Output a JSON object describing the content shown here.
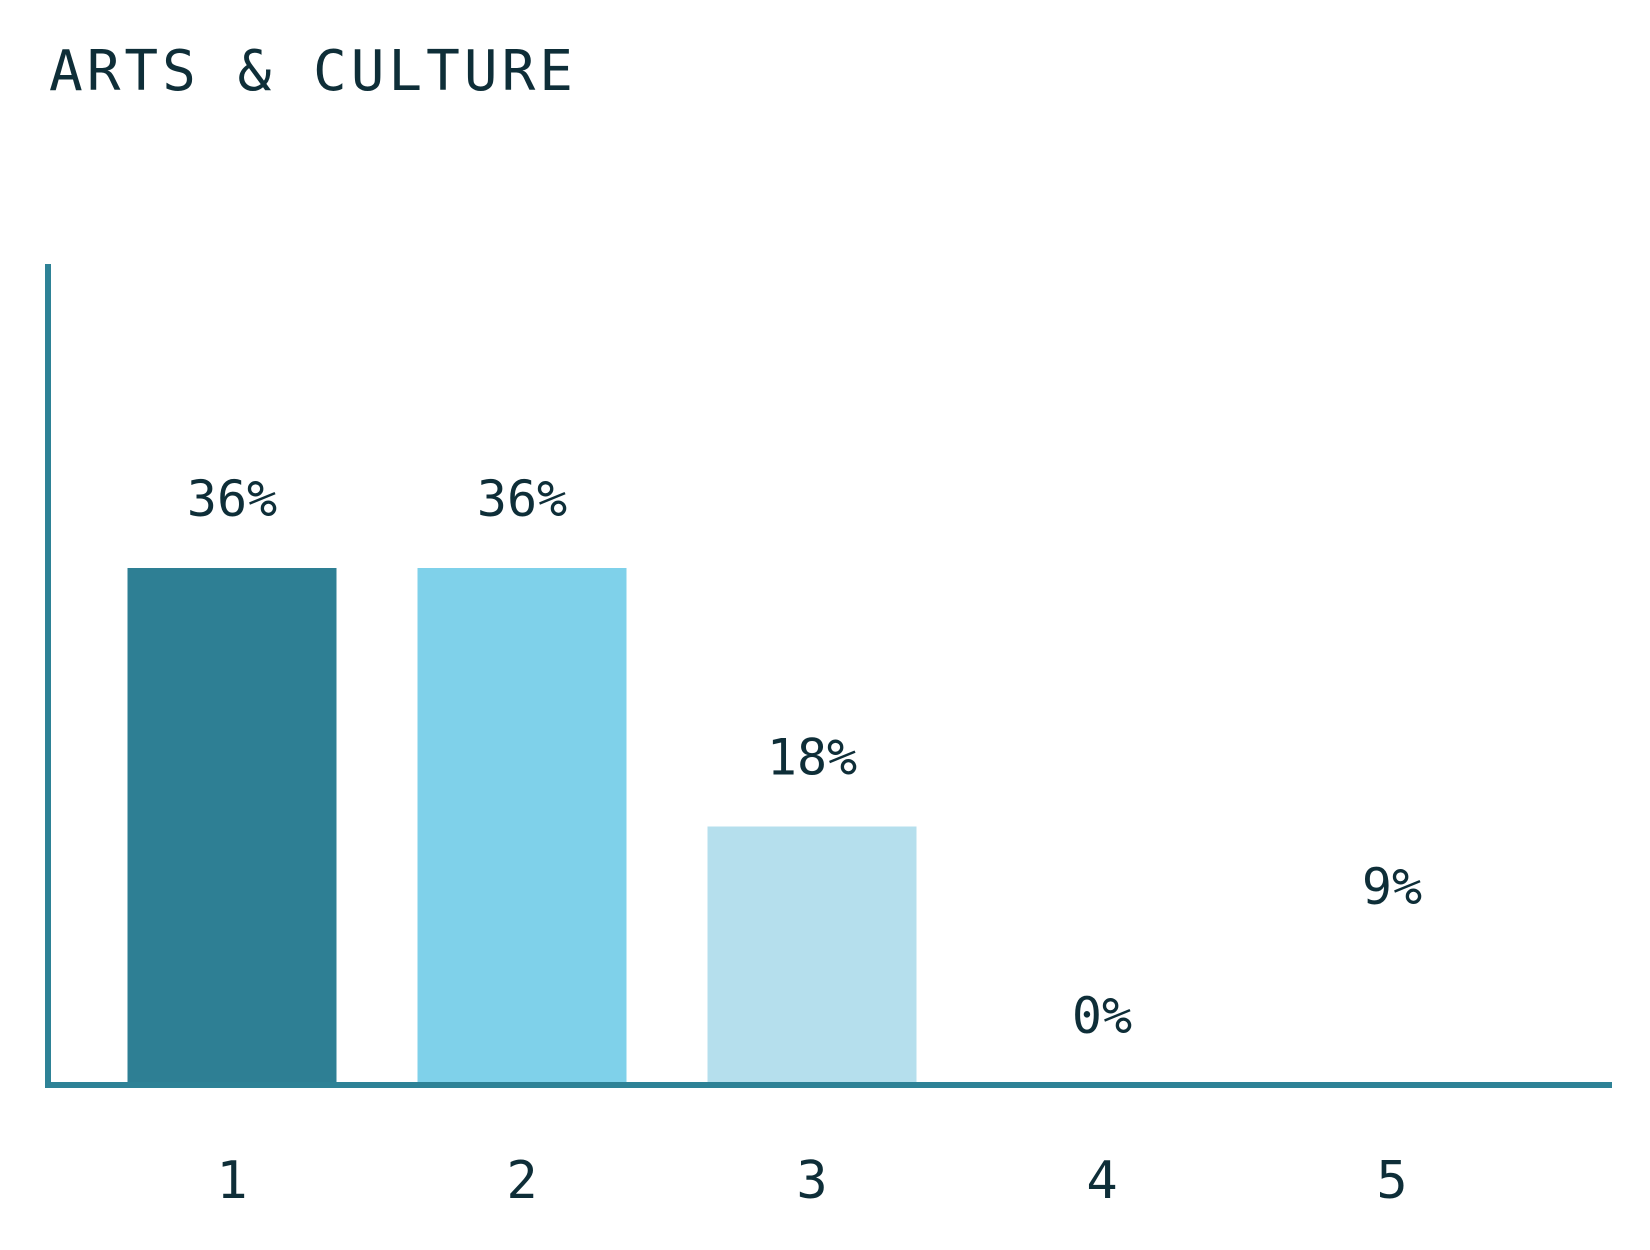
{
  "chart_data": {
    "type": "bar",
    "title": "ARTS & CULTURE",
    "xlabel": "",
    "ylabel": "",
    "categories": [
      "1",
      "2",
      "3",
      "4",
      "5"
    ],
    "values": [
      36,
      36,
      18,
      0,
      9
    ],
    "data_labels": [
      "36%",
      "36%",
      "18%",
      "0%",
      "9%"
    ],
    "bar_colors": [
      "#2e7f94",
      "#7fd1ea",
      "#b5dfed",
      "#b5dfed",
      "#ffffff"
    ],
    "axis_color": "#2e8296",
    "text_color": "#0e2e38",
    "ylim": [
      0,
      72
    ],
    "grid": false,
    "legend": "none"
  }
}
